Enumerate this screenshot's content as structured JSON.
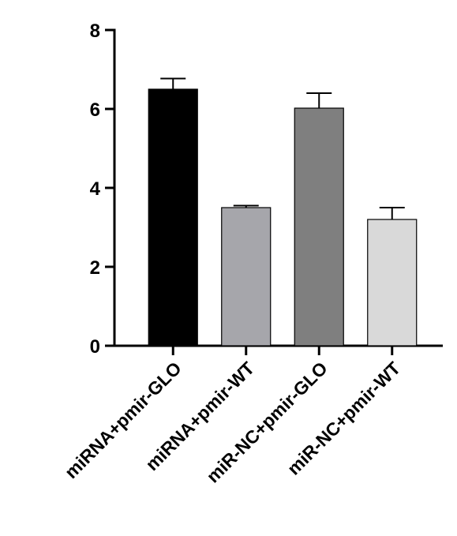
{
  "chart_data": {
    "type": "bar",
    "title": "",
    "xlabel": "",
    "ylabel": "",
    "ylim": [
      0,
      8
    ],
    "yticks": [
      0,
      2,
      4,
      6,
      8
    ],
    "grid": false,
    "legend": "none",
    "categories": [
      "miRNA+pmir-GLO",
      "miRNA+pmir-WT",
      "miR-NC+pmir-GLO",
      "miR-NC+pmir-WT"
    ],
    "values": [
      6.5,
      3.5,
      6.02,
      3.2
    ],
    "errors": [
      0.27,
      0.05,
      0.38,
      0.3
    ],
    "colors": [
      "#000000",
      "#a6a6ab",
      "#7f7f7f",
      "#d9d9d9"
    ]
  }
}
